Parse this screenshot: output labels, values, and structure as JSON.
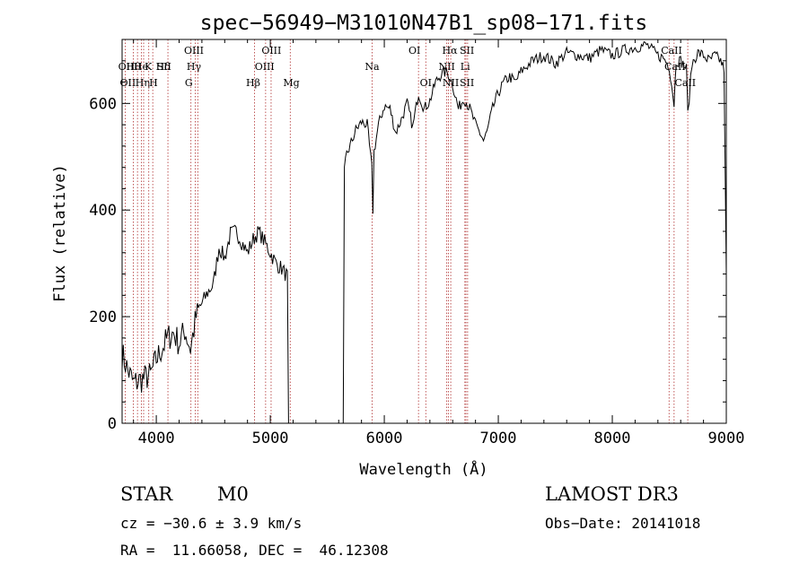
{
  "chart_data": {
    "type": "line",
    "title": "spec−56949−M31010N47B1_sp08−171.fits",
    "xlabel": "Wavelength (Å)",
    "ylabel": "Flux (relative)",
    "xlim": [
      3700,
      9000
    ],
    "ylim": [
      0,
      720
    ],
    "xticks": [
      4000,
      5000,
      6000,
      7000,
      8000,
      9000
    ],
    "yticks": [
      0,
      200,
      400,
      600
    ],
    "x": [
      3700,
      3750,
      3800,
      3850,
      3900,
      3950,
      4000,
      4050,
      4100,
      4150,
      4200,
      4250,
      4300,
      4350,
      4400,
      4450,
      4500,
      4550,
      4600,
      4650,
      4700,
      4750,
      4800,
      4850,
      4900,
      4950,
      5000,
      5050,
      5100,
      5150,
      5160,
      5200,
      5300,
      5400,
      5500,
      5600,
      5640,
      5650,
      5660,
      5670,
      5680,
      5700,
      5750,
      5800,
      5850,
      5890,
      5900,
      5910,
      5950,
      6000,
      6050,
      6100,
      6150,
      6200,
      6250,
      6300,
      6350,
      6400,
      6450,
      6500,
      6550,
      6563,
      6600,
      6650,
      6700,
      6750,
      6800,
      6850,
      6870,
      6900,
      6950,
      7000,
      7050,
      7100,
      7150,
      7200,
      7300,
      7400,
      7500,
      7600,
      7700,
      7800,
      7900,
      8000,
      8100,
      8200,
      8300,
      8400,
      8450,
      8500,
      8542,
      8560,
      8600,
      8650,
      8662,
      8700,
      8750,
      8800,
      8850,
      8900,
      8950,
      8980,
      9000
    ],
    "y": [
      130,
      100,
      75,
      80,
      85,
      90,
      120,
      140,
      160,
      170,
      150,
      175,
      140,
      200,
      225,
      245,
      260,
      330,
      310,
      355,
      360,
      340,
      320,
      345,
      360,
      340,
      320,
      300,
      290,
      275,
      0,
      0,
      0,
      0,
      0,
      0,
      0,
      470,
      490,
      505,
      510,
      520,
      550,
      565,
      560,
      480,
      400,
      510,
      560,
      595,
      590,
      545,
      570,
      600,
      555,
      620,
      590,
      605,
      640,
      655,
      660,
      655,
      635,
      590,
      610,
      590,
      560,
      540,
      530,
      545,
      590,
      620,
      640,
      650,
      640,
      660,
      680,
      690,
      675,
      695,
      690,
      685,
      700,
      690,
      700,
      705,
      710,
      690,
      685,
      670,
      600,
      680,
      680,
      665,
      580,
      675,
      695,
      690,
      680,
      690,
      680,
      665,
      280
    ],
    "lines": [
      {
        "wave": 3727,
        "labels": [
          "OII"
        ],
        "row": [
          2
        ],
        "pos": [
          3750
        ]
      },
      {
        "wave": 3798,
        "labels": [],
        "row": [],
        "pos": []
      },
      {
        "wave": 3835,
        "labels": [
          "Hθ"
        ],
        "row": [
          1
        ],
        "pos": [
          3800
        ]
      },
      {
        "wave": 3869,
        "labels": [],
        "row": [],
        "pos": []
      },
      {
        "wave": 3889,
        "labels": [
          "Hη"
        ],
        "row": [
          2
        ],
        "pos": [
          3880
        ]
      },
      {
        "wave": 3934,
        "labels": [
          "K"
        ],
        "row": [
          1
        ],
        "pos": [
          3930
        ]
      },
      {
        "wave": 3969,
        "labels": [
          "H"
        ],
        "row": [
          2
        ],
        "pos": [
          3975
        ]
      },
      {
        "wave": 4102,
        "labels": [
          "Hδ"
        ],
        "row": [
          1
        ],
        "pos": [
          4060
        ]
      },
      {
        "wave": 4304,
        "labels": [
          "G"
        ],
        "row": [
          2
        ],
        "pos": [
          4285
        ]
      },
      {
        "wave": 4341,
        "labels": [
          "Hγ"
        ],
        "row": [
          1
        ],
        "pos": [
          4330
        ]
      },
      {
        "wave": 4364,
        "labels": [
          "OIII"
        ],
        "row": [
          0
        ],
        "pos": [
          4330
        ]
      },
      {
        "wave": 4861,
        "labels": [
          "Hβ"
        ],
        "row": [
          2
        ],
        "pos": [
          4850
        ]
      },
      {
        "wave": 4959,
        "labels": [
          "OIII"
        ],
        "row": [
          1
        ],
        "pos": [
          4950
        ]
      },
      {
        "wave": 5007,
        "labels": [
          "OIII"
        ],
        "row": [
          0
        ],
        "pos": [
          5010
        ]
      },
      {
        "wave": 5175,
        "labels": [
          "Mg"
        ],
        "row": [
          2
        ],
        "pos": [
          5185
        ]
      },
      {
        "wave": 5893,
        "labels": [
          "Na"
        ],
        "row": [
          1
        ],
        "pos": [
          5893
        ]
      },
      {
        "wave": 6300,
        "labels": [
          "OI"
        ],
        "row": [
          0
        ],
        "pos": [
          6265
        ]
      },
      {
        "wave": 6364,
        "labels": [
          "OI"
        ],
        "row": [
          2
        ],
        "pos": [
          6364
        ]
      },
      {
        "wave": 6548,
        "labels": [
          "NII"
        ],
        "row": [
          1
        ],
        "pos": [
          6548
        ]
      },
      {
        "wave": 6563,
        "labels": [
          "Hα"
        ],
        "row": [
          0
        ],
        "pos": [
          6575
        ]
      },
      {
        "wave": 6583,
        "labels": [
          "NII"
        ],
        "row": [
          2
        ],
        "pos": [
          6583
        ]
      },
      {
        "wave": 6707,
        "labels": [
          "Li"
        ],
        "row": [
          1
        ],
        "pos": [
          6710
        ]
      },
      {
        "wave": 6716,
        "labels": [
          "SII"
        ],
        "row": [
          0
        ],
        "pos": [
          6725
        ]
      },
      {
        "wave": 6731,
        "labels": [
          "SII"
        ],
        "row": [
          2
        ],
        "pos": [
          6725
        ]
      },
      {
        "wave": 8498,
        "labels": [
          "CaII"
        ],
        "row": [
          0
        ],
        "pos": [
          8520
        ]
      },
      {
        "wave": 8542,
        "labels": [
          "CaII"
        ],
        "row": [
          1
        ],
        "pos": [
          8550
        ]
      },
      {
        "wave": 8662,
        "labels": [
          "CaII"
        ],
        "row": [
          2
        ],
        "pos": [
          8640
        ]
      }
    ],
    "ghost_labels": [
      {
        "text": "OII",
        "row": 1,
        "pos": 3735
      },
      {
        "text": "He",
        "row": 1,
        "pos": 3865
      },
      {
        "text": "SII",
        "row": 1,
        "pos": 4068
      }
    ]
  },
  "info": {
    "object_class": "STAR",
    "subclass": "M0",
    "survey": "LAMOST DR3",
    "cz": "cz = −30.6 ± 3.9 km/s",
    "obs_date": "Obs−Date: 20141018",
    "coords": "RA =  11.66058, DEC =  46.12308"
  },
  "colors": {
    "spectrum": "#000000",
    "line_markers": "#b03030"
  }
}
